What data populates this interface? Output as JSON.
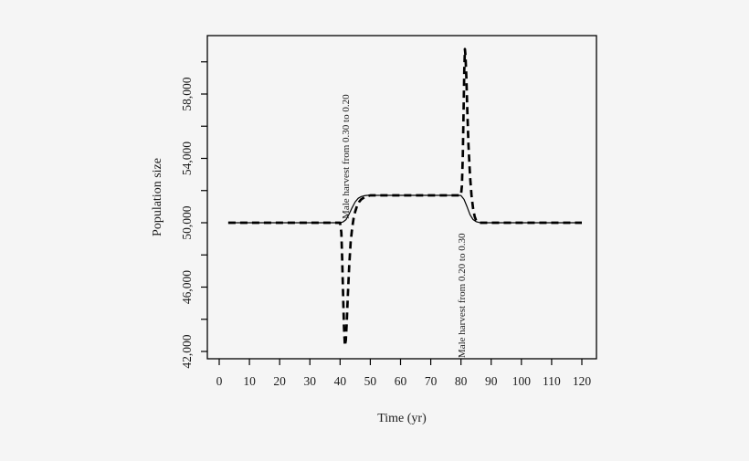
{
  "chart_data": {
    "type": "line",
    "title": "",
    "xlabel": "Time (yr)",
    "ylabel": "Population size",
    "xlim": [
      -4,
      125
    ],
    "ylim": [
      41500,
      61650
    ],
    "grid": false,
    "legend": "none",
    "x_ticks": [
      {
        "value": 0,
        "label": "0"
      },
      {
        "value": 10,
        "label": "10"
      },
      {
        "value": 20,
        "label": "20"
      },
      {
        "value": 30,
        "label": "30"
      },
      {
        "value": 40,
        "label": "40"
      },
      {
        "value": 50,
        "label": "50"
      },
      {
        "value": 60,
        "label": "60"
      },
      {
        "value": 70,
        "label": "70"
      },
      {
        "value": 80,
        "label": "80"
      },
      {
        "value": 90,
        "label": "90"
      },
      {
        "value": 100,
        "label": "100"
      },
      {
        "value": 110,
        "label": "110"
      },
      {
        "value": 120,
        "label": "120"
      }
    ],
    "y_ticks": [
      {
        "value": 42000,
        "label": "42,000"
      },
      {
        "value": 44000,
        "label": ""
      },
      {
        "value": 46000,
        "label": "46,000"
      },
      {
        "value": 48000,
        "label": ""
      },
      {
        "value": 50000,
        "label": "50,000"
      },
      {
        "value": 52000,
        "label": ""
      },
      {
        "value": 54000,
        "label": "54,000"
      },
      {
        "value": 56000,
        "label": ""
      },
      {
        "value": 58000,
        "label": "58,000"
      },
      {
        "value": 60000,
        "label": ""
      }
    ],
    "annotations": [
      {
        "text": "Male harvest from 0.30 to 0.20",
        "x": 42.9,
        "y": 50230
      },
      {
        "text": "Male harvest from 0.20 to 0.30",
        "x": 81.3,
        "y": 41600
      }
    ],
    "colors": {
      "line": "#000000",
      "background": "#f5f5f5"
    },
    "series": [
      {
        "name": "solid-line",
        "style": "solid",
        "points": [
          [
            3,
            50000
          ],
          [
            40,
            50000
          ],
          [
            41,
            50050
          ],
          [
            42,
            50200
          ],
          [
            43,
            50550
          ],
          [
            44,
            50950
          ],
          [
            45,
            51300
          ],
          [
            46,
            51520
          ],
          [
            47,
            51630
          ],
          [
            48,
            51680
          ],
          [
            49,
            51700
          ],
          [
            79,
            51700
          ],
          [
            80,
            51690
          ],
          [
            81,
            51450
          ],
          [
            82,
            51000
          ],
          [
            83,
            50500
          ],
          [
            84,
            50200
          ],
          [
            85,
            50070
          ],
          [
            86,
            50015
          ],
          [
            87,
            50000
          ],
          [
            120,
            50000
          ]
        ]
      },
      {
        "name": "dashed-line",
        "style": "dashed",
        "points": [
          [
            3,
            50000
          ],
          [
            40,
            50000
          ],
          [
            40.4,
            49400
          ],
          [
            40.7,
            47800
          ],
          [
            41,
            45600
          ],
          [
            41.3,
            43500
          ],
          [
            41.6,
            42350
          ],
          [
            41.9,
            42700
          ],
          [
            42.2,
            43800
          ],
          [
            42.6,
            45600
          ],
          [
            43,
            47300
          ],
          [
            43.5,
            48800
          ],
          [
            44,
            49700
          ],
          [
            44.5,
            50300
          ],
          [
            45,
            50700
          ],
          [
            45.6,
            51050
          ],
          [
            46.3,
            51300
          ],
          [
            47,
            51450
          ],
          [
            48,
            51580
          ],
          [
            49,
            51650
          ],
          [
            50,
            51700
          ],
          [
            79,
            51700
          ],
          [
            80,
            51720
          ],
          [
            80.3,
            52300
          ],
          [
            80.6,
            54200
          ],
          [
            80.9,
            57200
          ],
          [
            81.1,
            59500
          ],
          [
            81.3,
            60800
          ],
          [
            81.5,
            60400
          ],
          [
            81.8,
            59000
          ],
          [
            82.1,
            57000
          ],
          [
            82.5,
            54800
          ],
          [
            83,
            52900
          ],
          [
            83.5,
            51700
          ],
          [
            84,
            50900
          ],
          [
            84.5,
            50400
          ],
          [
            85,
            50150
          ],
          [
            85.6,
            50040
          ],
          [
            86.2,
            50000
          ],
          [
            120,
            50000
          ]
        ]
      }
    ]
  }
}
